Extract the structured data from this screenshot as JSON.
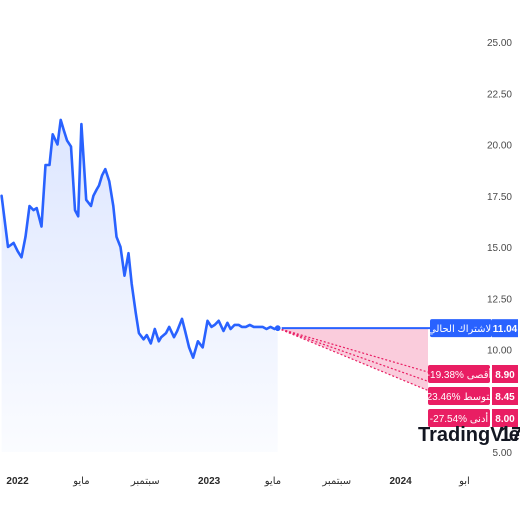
{
  "chart_data": {
    "type": "line",
    "y_ticks": [
      "25.00",
      "22.50",
      "20.00",
      "17.50",
      "15.00",
      "12.50",
      "10.00",
      "7.50",
      "5.00"
    ],
    "ylim": [
      5,
      25
    ],
    "x_ticks": [
      {
        "label": "2022",
        "year": true,
        "t": 0.0
      },
      {
        "label": "مايو",
        "year": false,
        "t": 4.0
      },
      {
        "label": "سبتمبر",
        "year": false,
        "t": 8.0
      },
      {
        "label": "2023",
        "year": true,
        "t": 12.0
      },
      {
        "label": "مايو",
        "year": false,
        "t": 16.0
      },
      {
        "label": "سبتمبر",
        "year": false,
        "t": 20.0
      },
      {
        "label": "2024",
        "year": true,
        "t": 24.0
      },
      {
        "label": "ابو",
        "year": false,
        "t": 28.0
      }
    ],
    "xlim": [
      -1.1,
      29.6
    ],
    "series": [
      {
        "values_x": [
          -1.0,
          -0.6,
          -0.25,
          0.0,
          0.25,
          0.5,
          0.75,
          1.0,
          1.2,
          1.5,
          1.75,
          2.0,
          2.2,
          2.5,
          2.7,
          2.9,
          3.1,
          3.35,
          3.6,
          3.8,
          4.0,
          4.3,
          4.6,
          4.75,
          4.95,
          5.1,
          5.3,
          5.5,
          5.75,
          6.0,
          6.2,
          6.45,
          6.7,
          6.95,
          7.15,
          7.4,
          7.6,
          7.9,
          8.1,
          8.35,
          8.6,
          8.85,
          9.0,
          9.3,
          9.5,
          9.8,
          10.0,
          10.3,
          10.5,
          10.75,
          11.0,
          11.3,
          11.6,
          11.9,
          12.15,
          12.35,
          12.6,
          12.9,
          13.15,
          13.35,
          13.6,
          13.85,
          14.05,
          14.3,
          14.55,
          14.8,
          15.05,
          15.35,
          15.6,
          15.85,
          16.1,
          16.3
        ],
        "values_y": [
          17.5,
          15.0,
          15.2,
          14.8,
          14.5,
          15.5,
          17.0,
          16.8,
          16.9,
          16.0,
          19.0,
          19.0,
          20.5,
          20.0,
          21.2,
          20.7,
          20.2,
          19.9,
          16.8,
          16.5,
          21.0,
          17.3,
          17.0,
          17.5,
          17.8,
          18.0,
          18.5,
          18.8,
          18.2,
          17.0,
          15.5,
          15.0,
          13.6,
          14.7,
          13.2,
          11.8,
          10.8,
          10.5,
          10.7,
          10.3,
          11.0,
          10.4,
          10.6,
          10.8,
          11.1,
          10.6,
          10.9,
          11.5,
          10.9,
          10.1,
          9.6,
          10.4,
          10.1,
          11.4,
          11.1,
          11.2,
          11.4,
          10.9,
          11.3,
          11.0,
          11.2,
          11.2,
          11.1,
          11.1,
          11.2,
          11.1,
          11.1,
          11.1,
          11.0,
          11.1,
          11.0,
          11.1
        ],
        "color": "#2962ff"
      }
    ],
    "current_price": {
      "label": "الاشتراك الحالي",
      "value": "11.04",
      "y": 11.04,
      "color": "#2962ff"
    },
    "forecast_start": {
      "t": 16.3,
      "y": 11.04
    },
    "forecast_end_t": 29.6,
    "forecasts": [
      {
        "label": "أقصى",
        "percent": "-19.38%",
        "value": "8.90",
        "y": 8.9,
        "color": "#e91e63"
      },
      {
        "label": "متوسط",
        "percent": "-23.46%",
        "value": "8.45",
        "y": 8.45,
        "color": "#e91e63"
      },
      {
        "label": "أدنى",
        "percent": "-27.54%",
        "value": "8.00",
        "y": 8.0,
        "color": "#e91e63"
      }
    ],
    "grid": false,
    "legend": "none",
    "title": "",
    "xlabel": "",
    "ylabel": ""
  },
  "watermark": {
    "text": "TradingView",
    "logo_text": "17"
  }
}
